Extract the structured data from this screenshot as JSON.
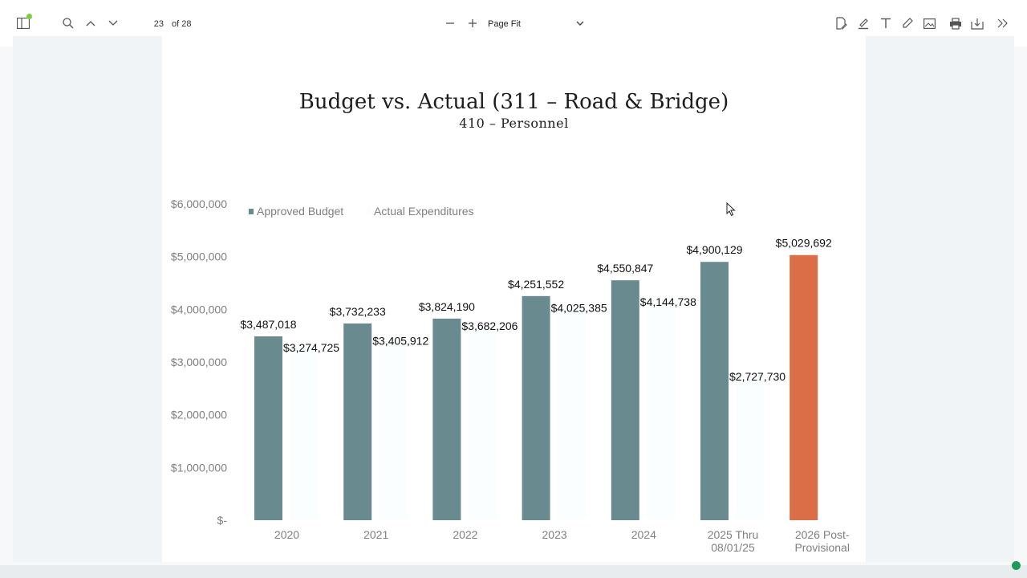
{
  "toolbar": {
    "current_page": "23",
    "page_of": "of 28",
    "zoom_label": "Page Fit"
  },
  "slide": {
    "title": "Budget vs. Actual (311 – Road & Bridge)",
    "subtitle": "410 – Personnel"
  },
  "colors": {
    "budget": "#698a8f",
    "actual": "#fafeff",
    "provisional": "#db6e47",
    "status": "#1e9a5a"
  },
  "chart_data": {
    "type": "bar",
    "title": "Budget vs. Actual (311 – Road & Bridge)",
    "subtitle": "410 – Personnel",
    "ylim": [
      0,
      6000000
    ],
    "y_ticks": [
      {
        "value": 6000000,
        "label": "$6,000,000"
      },
      {
        "value": 5000000,
        "label": "$5,000,000"
      },
      {
        "value": 4000000,
        "label": "$4,000,000"
      },
      {
        "value": 3000000,
        "label": "$3,000,000"
      },
      {
        "value": 2000000,
        "label": "$2,000,000"
      },
      {
        "value": 1000000,
        "label": "$1,000,000"
      },
      {
        "value": 0,
        "label": "$-"
      }
    ],
    "legend_position": "top-left",
    "grid": false,
    "categories": [
      [
        "2020"
      ],
      [
        "2021"
      ],
      [
        "2022"
      ],
      [
        "2023"
      ],
      [
        "2024"
      ],
      [
        "2025 Thru",
        "08/01/25"
      ],
      [
        "2026 Post-",
        "Provisional"
      ]
    ],
    "series": [
      {
        "name": "Approved Budget",
        "values": [
          3487018,
          3732233,
          3824190,
          4251552,
          4550847,
          4900129,
          5029692
        ],
        "labels": [
          "$3,487,018",
          "$3,732,233",
          "$3,824,190",
          "$4,251,552",
          "$4,550,847",
          "$4,900,129",
          "$5,029,692"
        ]
      },
      {
        "name": "Actual Expenditures",
        "values": [
          3274725,
          3405912,
          3682206,
          4025385,
          4144738,
          2727730,
          null
        ],
        "labels": [
          "$3,274,725",
          "$3,405,912",
          "$3,682,206",
          "$4,025,385",
          "$4,144,738",
          "$2,727,730",
          ""
        ]
      }
    ]
  }
}
